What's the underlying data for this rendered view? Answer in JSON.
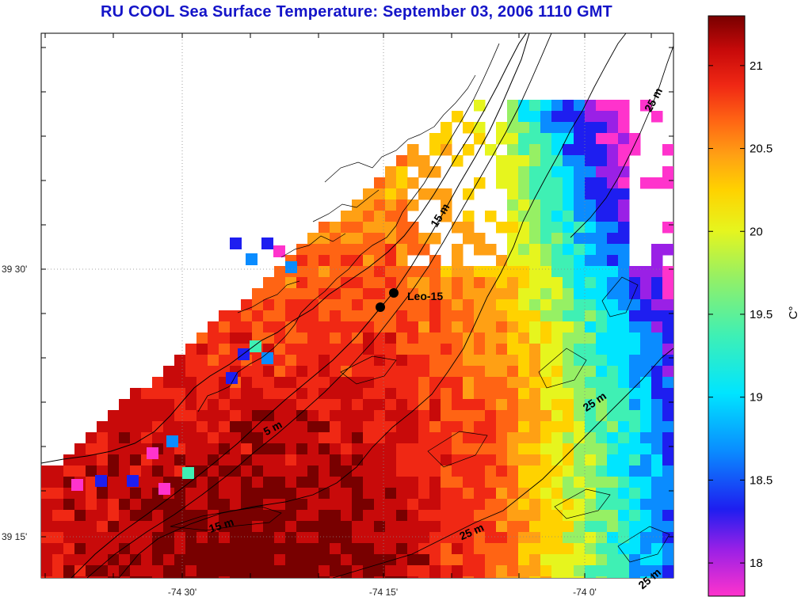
{
  "title": "RU COOL  Sea Surface Temperature:  September 03, 2006 1110 GMT",
  "map": {
    "lon_ticks": [
      "-74 30'",
      "-74 15'",
      "-74 0'"
    ],
    "lat_ticks": [
      "39 30'",
      "39 15'"
    ],
    "contours": [
      {
        "label": "5 m"
      },
      {
        "label": "15 m"
      },
      {
        "label": "15 m"
      },
      {
        "label": "25 m"
      },
      {
        "label": "25 m"
      },
      {
        "label": "25 m"
      },
      {
        "label": "25 m"
      }
    ],
    "station": {
      "label": "Leo-15"
    }
  },
  "colorbar": {
    "unit": "C°",
    "ticks": [
      "21",
      "20.5",
      "20",
      "19.5",
      "19",
      "18.5",
      "18"
    ],
    "range": [
      17.8,
      21.3
    ],
    "colors": [
      "#ff33cc",
      "#9a20e6",
      "#1e1ef0",
      "#0a8cff",
      "#00e5ff",
      "#3ff0b4",
      "#96f064",
      "#e6f51e",
      "#ffd200",
      "#ffa014",
      "#ff6414",
      "#f02814",
      "#c80a0a",
      "#780000"
    ]
  }
}
